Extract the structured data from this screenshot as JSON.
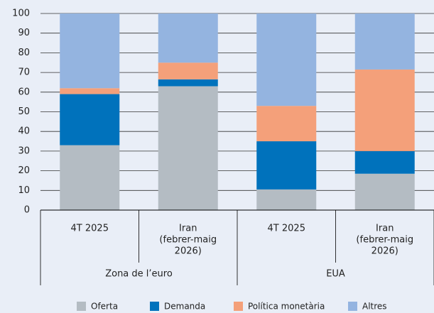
{
  "chart_data": {
    "type": "stacked-bar",
    "categories": [
      [
        "4T 2025"
      ],
      [
        "Iran",
        "(febrer-maig",
        "2026)"
      ],
      [
        "4T 2025"
      ],
      [
        "Iran",
        "(febrer-maig",
        "2026)"
      ]
    ],
    "groups": [
      "Zona de l’euro",
      "EUA"
    ],
    "series": [
      {
        "name": "Oferta",
        "color": "#b4bcc3",
        "values": [
          33,
          63,
          10.5,
          18.5
        ]
      },
      {
        "name": "Demanda",
        "color": "#0072bc",
        "values": [
          26,
          3.5,
          24.5,
          11.5
        ]
      },
      {
        "name": "Política monetària",
        "color": "#f4a07a",
        "values": [
          3,
          8.5,
          18,
          41.5
        ]
      },
      {
        "name": "Altres",
        "color": "#94b4e0",
        "values": [
          38,
          25,
          47,
          28.5
        ]
      }
    ],
    "ylim": [
      0,
      100
    ],
    "yticks": [
      0,
      10,
      20,
      30,
      40,
      50,
      60,
      70,
      80,
      90,
      100
    ],
    "grid": true
  }
}
